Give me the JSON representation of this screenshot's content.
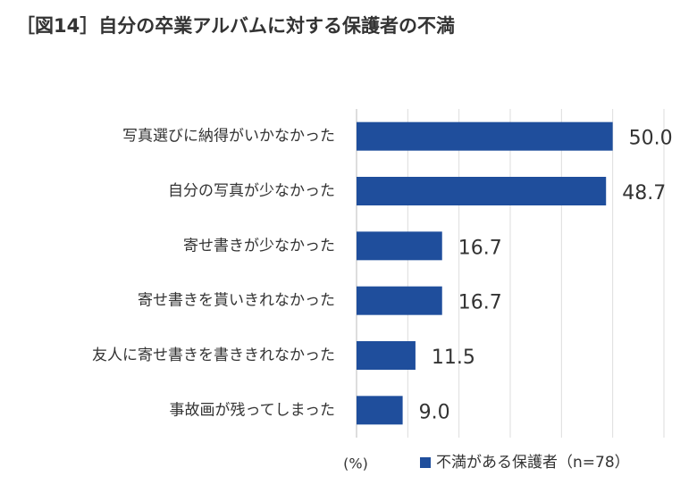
{
  "chart_data": {
    "type": "hbar",
    "title": "［図14］自分の卒業アルバムに対する保護者の不満",
    "categories": [
      "写真選びに納得がいかなかった",
      "自分の写真が少なかった",
      "寄せ書きが少なかった",
      "寄せ書きを貰いきれなかった",
      "友人に寄せ書きを書ききれなかった",
      "事故画が残ってしまった"
    ],
    "series": [
      {
        "name": "不満がある保護者（n=78）",
        "color": "#1f4e9c",
        "values": [
          50.0,
          48.7,
          16.7,
          16.7,
          11.5,
          9.0
        ],
        "value_labels": [
          "50.0",
          "48.7",
          "16.7",
          "16.7",
          "11.5",
          "9.0"
        ]
      }
    ],
    "axis_label": "(%)",
    "xlim": [
      0,
      60
    ],
    "xticks": [
      0,
      10,
      20,
      30,
      40,
      50,
      60
    ],
    "grid": true
  }
}
